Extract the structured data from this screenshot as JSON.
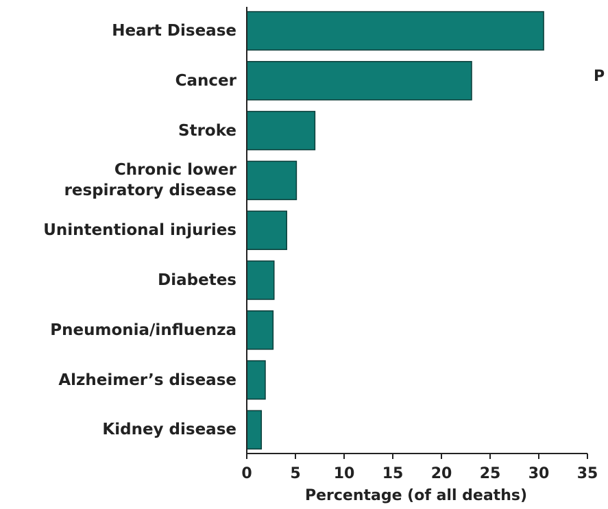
{
  "chart_data": {
    "type": "barh",
    "categories": [
      "Heart Disease",
      "Cancer",
      "Stroke",
      "Chronic lower\nrespiratory disease",
      "Unintentional injuries",
      "Diabetes",
      "Pneumonia/influenza",
      "Alzheimer’s disease",
      "Kidney disease"
    ],
    "values": [
      30.5,
      23.1,
      7.0,
      5.1,
      4.1,
      2.8,
      2.7,
      1.9,
      1.5
    ],
    "color": "#0f7c74",
    "xlabel": "Percentage (of all deaths)",
    "xlim": [
      0,
      35
    ],
    "xticks": [
      0,
      5,
      10,
      15,
      20,
      25,
      30,
      35
    ],
    "annotation": "P"
  }
}
